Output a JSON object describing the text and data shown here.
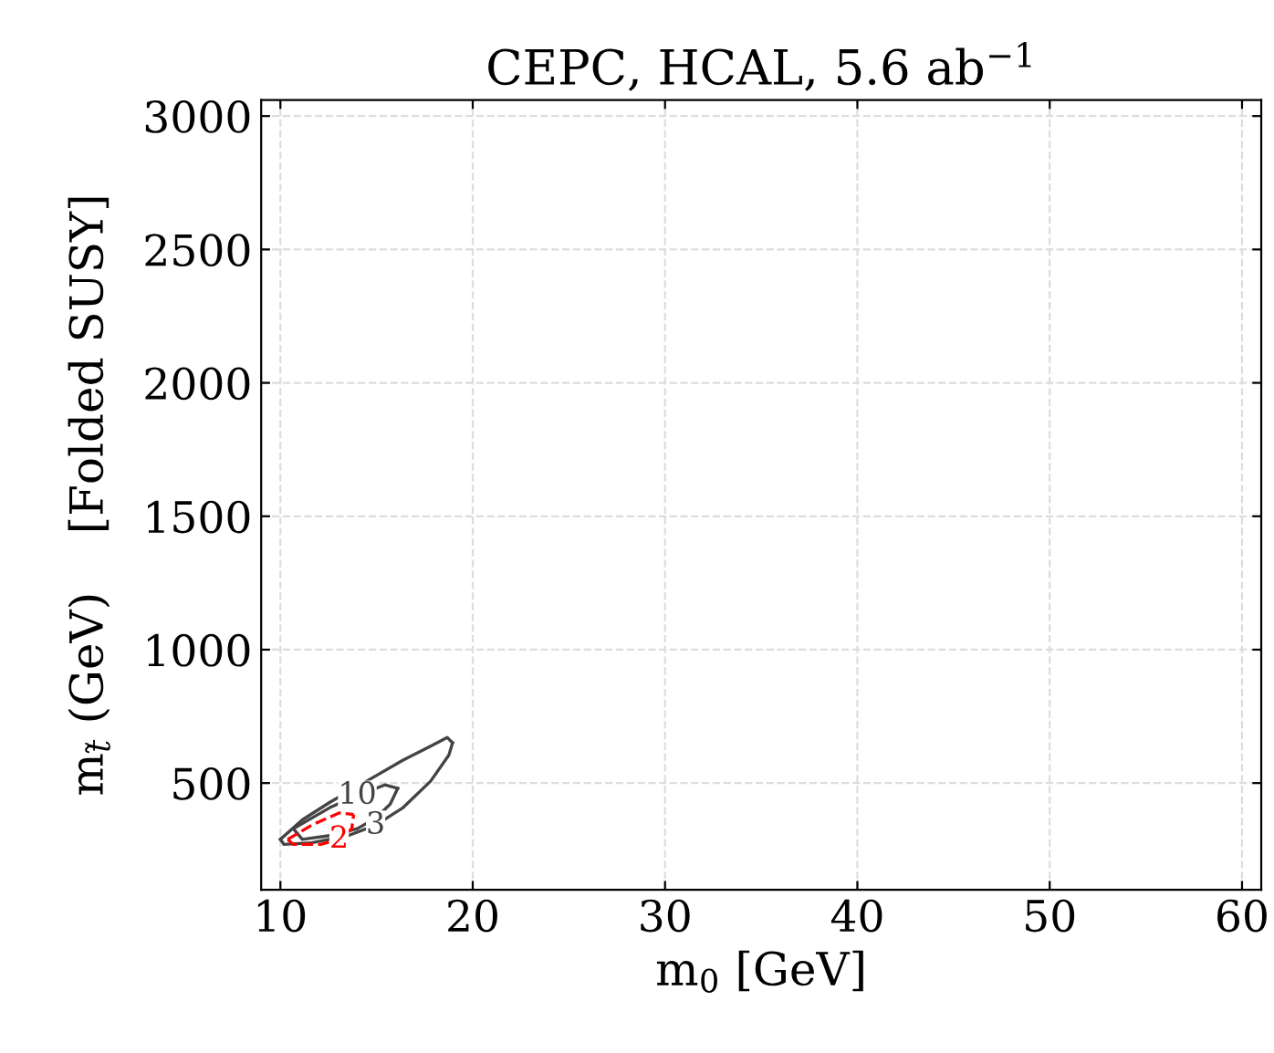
{
  "chart_data": {
    "type": "line",
    "title": "CEPC, HCAL, 5.6 ab$^{−1}$",
    "xlabel": "m$_{0}$ [GeV]",
    "ylabel": "m$_{t̃}$ (GeV)    [Folded SUSY]",
    "xlim": [
      9,
      61
    ],
    "xticks": [
      10,
      20,
      30,
      40,
      50,
      60
    ],
    "ylim": [
      100,
      3060
    ],
    "yticks": [
      500,
      1000,
      1500,
      2000,
      2500,
      3000
    ],
    "grid": true,
    "marker": "none",
    "series": [
      {
        "color": "#444444",
        "line_style": "solid",
        "x": [
          10.0,
          11.14,
          12.57,
          14.48,
          16.38,
          17.81,
          18.67,
          18.95
        ],
        "values": [
          289,
          362,
          428,
          507,
          586,
          638,
          671,
          651
        ]
      },
      {
        "name": "3",
        "color": "#444444",
        "line_style": "solid",
        "x": [
          10.0,
          10.19,
          11.62,
          13.52,
          14.95,
          16.38,
          17.81,
          18.76,
          18.95
        ],
        "values": [
          289,
          270,
          276,
          303,
          342,
          408,
          507,
          605,
          651
        ]
      },
      {
        "name": "10",
        "color": "#444444",
        "line_style": "solid",
        "x": [
          10.67,
          12.57,
          14.0,
          15.43,
          16.1
        ],
        "values": [
          329,
          408,
          454,
          493,
          480
        ]
      },
      {
        "color": "#444444",
        "line_style": "solid",
        "x": [
          10.67,
          11.14,
          12.57,
          14.0,
          14.95,
          15.71,
          16.1
        ],
        "values": [
          329,
          289,
          303,
          329,
          368,
          421,
          480
        ]
      },
      {
        "color": "#ff0000",
        "line_style": "dashed",
        "x": [
          10.38,
          11.62,
          13.05,
          13.81
        ],
        "values": [
          289,
          342,
          388,
          382
        ]
      },
      {
        "name": "2",
        "color": "#ff0000",
        "line_style": "dashed",
        "x": [
          10.38,
          10.67,
          12.1,
          13.05,
          13.71,
          13.81
        ],
        "values": [
          289,
          270,
          270,
          289,
          329,
          382
        ]
      }
    ]
  }
}
